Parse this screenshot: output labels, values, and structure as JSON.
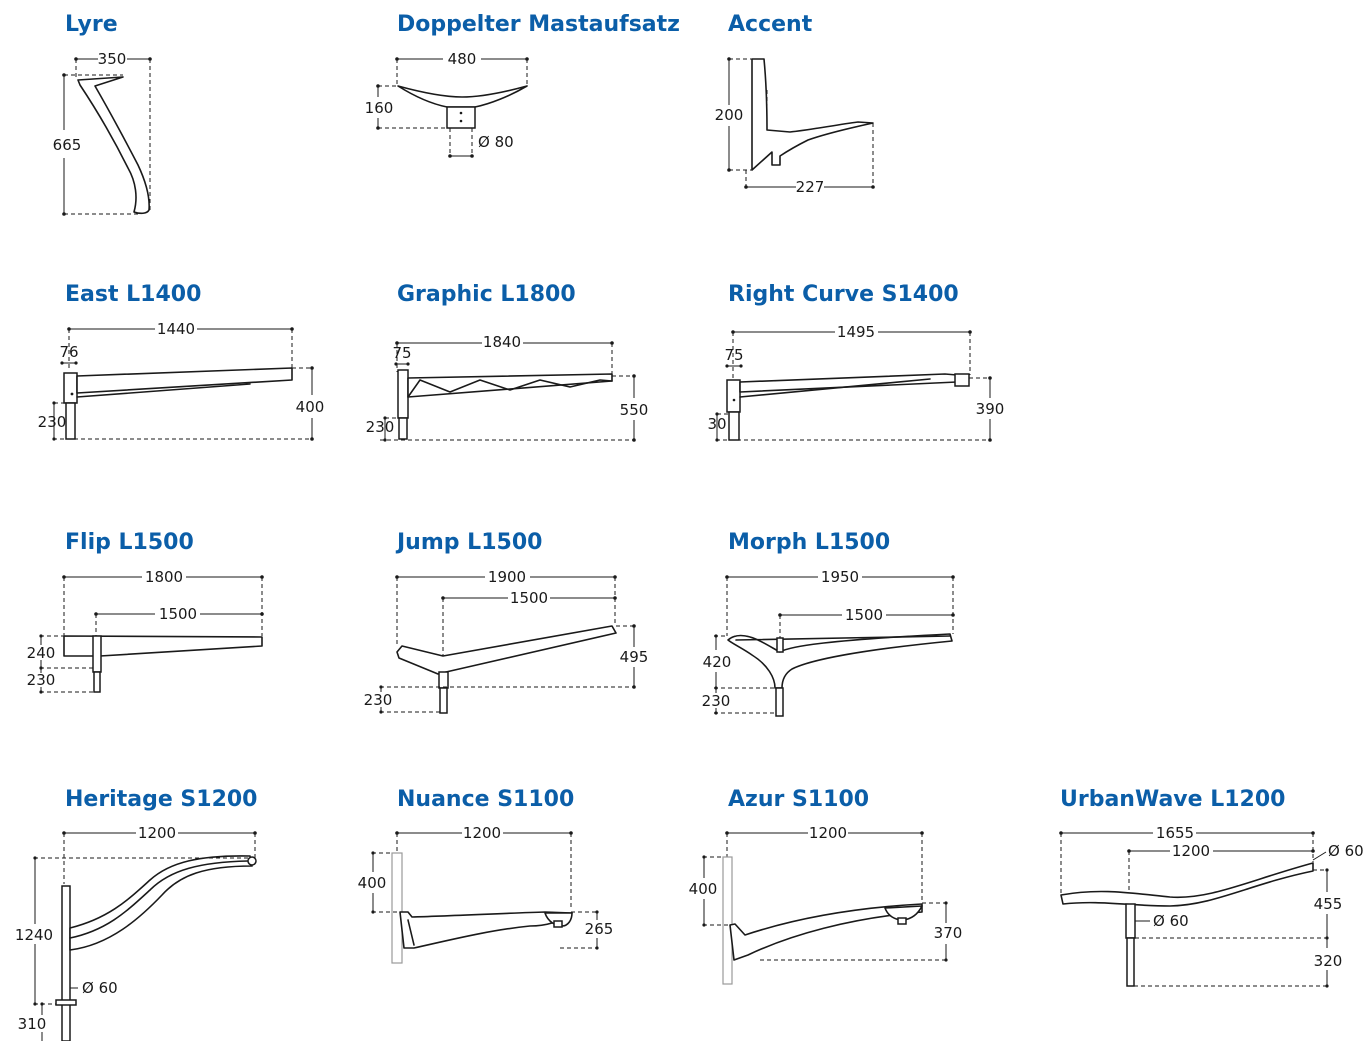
{
  "colors": {
    "title": "#0b5ea8",
    "line": "#1a1a1a",
    "background": "#ffffff"
  },
  "products": {
    "lyre": {
      "name": "Lyre",
      "dims": [
        "350",
        "665"
      ]
    },
    "doppelter": {
      "name": "Doppelter Mastaufsatz",
      "dims": [
        "480",
        "160",
        "Ø 80"
      ]
    },
    "accent": {
      "name": "Accent",
      "dims": [
        "200",
        "227"
      ]
    },
    "east": {
      "name": "East L1400",
      "dims": [
        "1440",
        "76",
        "230",
        "400"
      ]
    },
    "graphic": {
      "name": "Graphic L1800",
      "dims": [
        "1840",
        "75",
        "230",
        "550"
      ]
    },
    "rightcurve": {
      "name": "Right Curve S1400",
      "dims": [
        "1495",
        "75",
        "30",
        "390"
      ]
    },
    "flip": {
      "name": "Flip L1500",
      "dims": [
        "1800",
        "1500",
        "240",
        "230"
      ]
    },
    "jump": {
      "name": "Jump L1500",
      "dims": [
        "1900",
        "1500",
        "495",
        "230"
      ]
    },
    "morph": {
      "name": "Morph L1500",
      "dims": [
        "1950",
        "1500",
        "420",
        "230"
      ]
    },
    "heritage": {
      "name": "Heritage S1200",
      "dims": [
        "1200",
        "1240",
        "Ø 60",
        "310"
      ]
    },
    "nuance": {
      "name": "Nuance S1100",
      "dims": [
        "1200",
        "400",
        "265"
      ]
    },
    "azur": {
      "name": "Azur S1100",
      "dims": [
        "1200",
        "400",
        "370"
      ]
    },
    "urbanwave": {
      "name": "UrbanWave L1200",
      "dims": [
        "1655",
        "1200",
        "Ø 60",
        "Ø 60",
        "455",
        "320"
      ]
    }
  }
}
